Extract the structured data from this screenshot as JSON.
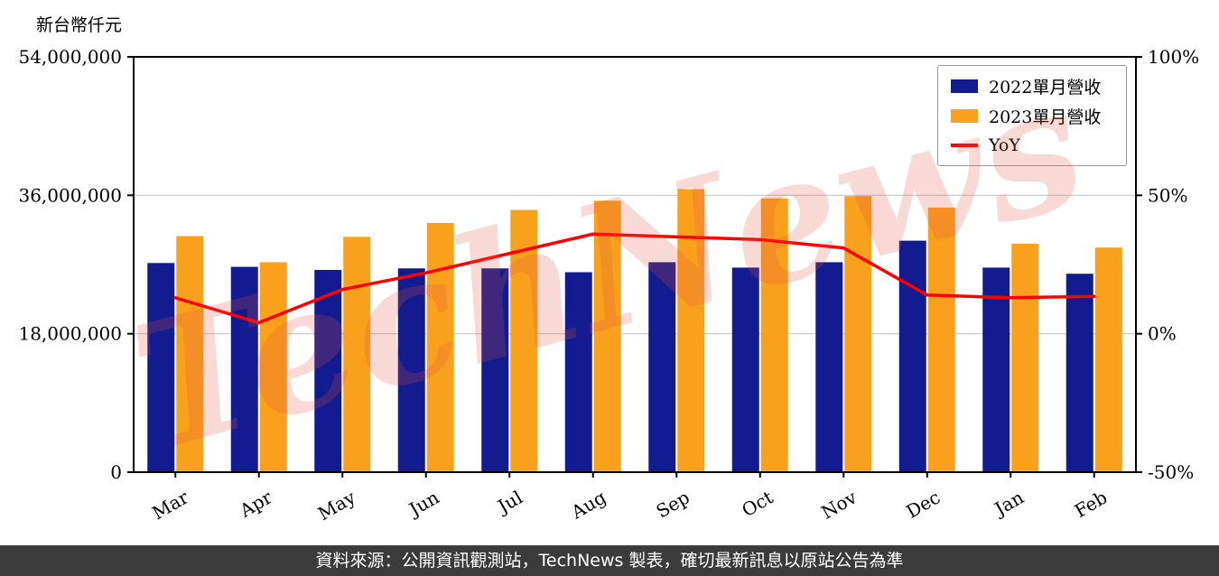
{
  "page": {
    "y_axis_title": "新台幣仟元",
    "watermark_text": "TechNews",
    "footer_text": "資料來源：公開資訊觀測站，TechNews 製表，確切最新訊息以原站公告為準"
  },
  "colors": {
    "bar_2022": "#121b8f",
    "bar_2023": "#f9a11c",
    "yoy_line": "#fe0000",
    "footer_bg": "#3b3b3b",
    "grid": "#c8c8c8",
    "watermark": "rgba(221, 80, 68, 0.22)",
    "axis": "#000000"
  },
  "chart_data": {
    "type": "bar",
    "title": "",
    "xlabel": "",
    "ylabel_left": "新台幣仟元",
    "ylabel_right": "%",
    "categories": [
      "Mar",
      "Apr",
      "May",
      "Jun",
      "Jul",
      "Aug",
      "Sep",
      "Oct",
      "Nov",
      "Dec",
      "Jan",
      "Feb"
    ],
    "series": [
      {
        "name": "2022單月營收",
        "type": "bar",
        "axis": "left",
        "color": "#121b8f",
        "values": [
          27200000,
          26700000,
          26300000,
          26500000,
          26500000,
          26000000,
          27300000,
          26600000,
          27300000,
          30100000,
          26600000,
          25800000
        ]
      },
      {
        "name": "2023單月營收",
        "type": "bar",
        "axis": "left",
        "color": "#f9a11c",
        "values": [
          30700000,
          27300000,
          30600000,
          32400000,
          34100000,
          35300000,
          36800000,
          35600000,
          35900000,
          34400000,
          29700000,
          29200000
        ]
      },
      {
        "name": "YoY",
        "type": "line",
        "axis": "right",
        "color": "#fe0000",
        "values": [
          13,
          4,
          16,
          22,
          29,
          36,
          35,
          34,
          31,
          14,
          13,
          13.5
        ]
      }
    ],
    "left_axis": {
      "range": [
        0,
        54000000
      ],
      "ticks": [
        0,
        18000000,
        36000000,
        54000000
      ],
      "labels": [
        "0",
        "18,000,000",
        "36,000,000",
        "54,000,000"
      ]
    },
    "right_axis": {
      "range": [
        -50,
        100
      ],
      "ticks": [
        -50,
        0,
        50,
        100
      ],
      "labels": [
        "-50%",
        "0%",
        "50%",
        "100%"
      ]
    },
    "grid": true,
    "legend_position": "top-right"
  }
}
